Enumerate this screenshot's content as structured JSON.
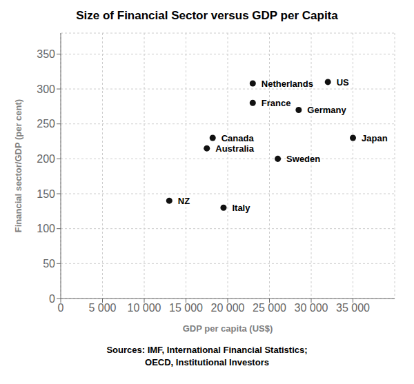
{
  "chart_data": {
    "type": "scatter",
    "title": "Size of Financial Sector versus GDP per Capita",
    "x_label": "GDP per capita (US$)",
    "y_label": "Financial sector/GDP (per cent)",
    "points": [
      {
        "label": "NZ",
        "x": 13000,
        "y": 140
      },
      {
        "label": "Italy",
        "x": 19500,
        "y": 130
      },
      {
        "label": "Australia",
        "x": 17500,
        "y": 215
      },
      {
        "label": "Canada",
        "x": 18200,
        "y": 230
      },
      {
        "label": "Sweden",
        "x": 26000,
        "y": 200
      },
      {
        "label": "France",
        "x": 23000,
        "y": 280
      },
      {
        "label": "Netherlands",
        "x": 23000,
        "y": 308
      },
      {
        "label": "Germany",
        "x": 28500,
        "y": 270
      },
      {
        "label": "US",
        "x": 32000,
        "y": 310
      },
      {
        "label": "Japan",
        "x": 35000,
        "y": 230
      }
    ],
    "color": "#111111",
    "xlim": [
      0,
      40000
    ],
    "ylim": [
      0,
      380
    ],
    "xticks": [
      0,
      {
        "value": 5000,
        "label": "5 000"
      },
      {
        "value": 10000,
        "label": "10 000"
      },
      {
        "value": 15000,
        "label": "15 000"
      },
      {
        "value": 20000,
        "label": "20 000"
      },
      {
        "value": 25000,
        "label": "25 000"
      },
      {
        "value": 30000,
        "label": "30 000"
      },
      {
        "value": 35000,
        "label": "35 000"
      }
    ],
    "yticks": [
      0,
      50,
      100,
      150,
      200,
      250,
      300,
      350
    ],
    "grid": true,
    "annotations": [
      "Sources: IMF, International Financial Statistics;",
      "OECD, Institutional Investors"
    ]
  }
}
